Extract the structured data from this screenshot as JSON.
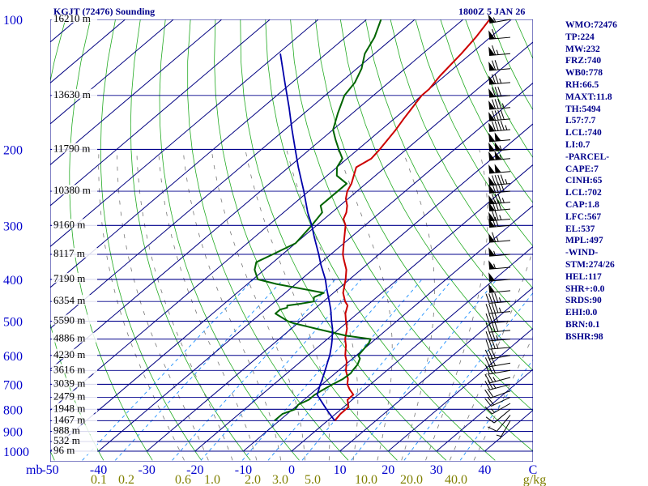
{
  "header": {
    "station": "KGJT (72476) Sounding",
    "timestamp": "1800Z  5 JAN 26"
  },
  "stats": [
    "WMO:72476",
    "TP:224",
    "MW:232",
    "FRZ:740",
    "WB0:778",
    "RH:66.5",
    "MAXT:11.8",
    "TH:5494",
    "L57:7.7",
    "LCL:740",
    "LI:0.7",
    "-PARCEL-",
    "CAPE:7",
    "CINH:65",
    "LCL:702",
    "CAP:1.8",
    "LFC:567",
    "EL:537",
    "MPL:497",
    "-WIND-",
    "STM:274/26",
    "HEL:117",
    "SHR+:0.0",
    "SRDS:90",
    "EHI:0.0",
    "BRN:0.1",
    "BSHR:98"
  ],
  "colors": {
    "isobar": "#00008b",
    "isotherm": "#000080",
    "dry_adiabat": "#22aa22",
    "mixing_ratio": "#1e90ff",
    "moist_adiabat": "#777777",
    "temperature": "#cc0000",
    "dewpoint": "#006400",
    "parcel": "#0000aa",
    "wind_barbs": "#000000",
    "axis_text": "#0000cd",
    "mixing_text": "#808000"
  },
  "chart_data": {
    "type": "line",
    "subtype": "skew-T log-P sounding",
    "title": "KGJT (72476) Sounding",
    "xlabel": "C",
    "ylabel": "mb",
    "xlim": [
      -50,
      50
    ],
    "ylim_pressure": [
      1000,
      100
    ],
    "pressure_ticks": [
      100,
      200,
      300,
      400,
      500,
      600,
      700,
      800,
      900,
      1000
    ],
    "pressure_tick_labels": [
      "100",
      "200",
      "300",
      "400",
      "500",
      "600",
      "700",
      "800",
      "900",
      "1000"
    ],
    "temperature_ticks": [
      -50,
      -40,
      -30,
      -20,
      -10,
      0,
      10,
      20,
      30,
      40,
      50
    ],
    "temperature_tick_labels": [
      "-50",
      "-40",
      "-30",
      "-20",
      "-10",
      "0",
      "10",
      "20",
      "30",
      "40",
      "C"
    ],
    "mixing_ratio_ticks": [
      0.1,
      0.2,
      0.6,
      1.0,
      2.0,
      3.0,
      5.0,
      10.0,
      20.0,
      40.0
    ],
    "mixing_ratio_labels": [
      "0.1",
      "0.2",
      "0.6",
      "1.0",
      "2.0",
      "3.0",
      "5.0",
      "10.0",
      "20.0",
      "40.0"
    ],
    "mixing_ratio_unit": "g/kg",
    "height_labels": [
      {
        "p": 100,
        "text": "16210 m"
      },
      {
        "p": 150,
        "text": "13630 m"
      },
      {
        "p": 200,
        "text": "11790 m"
      },
      {
        "p": 250,
        "text": "10380 m"
      },
      {
        "p": 300,
        "text": "9160 m"
      },
      {
        "p": 350,
        "text": "8117 m"
      },
      {
        "p": 400,
        "text": "7190 m"
      },
      {
        "p": 450,
        "text": "6354 m"
      },
      {
        "p": 500,
        "text": "5590 m"
      },
      {
        "p": 550,
        "text": "4886 m"
      },
      {
        "p": 600,
        "text": "4230 m"
      },
      {
        "p": 650,
        "text": "3616 m"
      },
      {
        "p": 700,
        "text": "3039 m"
      },
      {
        "p": 750,
        "text": "2479 m"
      },
      {
        "p": 800,
        "text": "1948 m"
      },
      {
        "p": 850,
        "text": "1467 m"
      },
      {
        "p": 900,
        "text": "988 m"
      },
      {
        "p": 950,
        "text": "532 m"
      },
      {
        "p": 1000,
        "text": "96 m"
      }
    ],
    "series": [
      {
        "key": "temperature",
        "points": [
          [
            850,
            1.5
          ],
          [
            820,
            1.0
          ],
          [
            790,
            1.0
          ],
          [
            760,
            -1.0
          ],
          [
            740,
            -1.0
          ],
          [
            720,
            -3.0
          ],
          [
            700,
            -4.8
          ],
          [
            680,
            -6.0
          ],
          [
            650,
            -8.5
          ],
          [
            620,
            -10.5
          ],
          [
            600,
            -12.3
          ],
          [
            570,
            -14.5
          ],
          [
            550,
            -16.3
          ],
          [
            520,
            -18.5
          ],
          [
            500,
            -20.5
          ],
          [
            480,
            -22.5
          ],
          [
            460,
            -24.0
          ],
          [
            450,
            -25.5
          ],
          [
            430,
            -28.0
          ],
          [
            400,
            -30.8
          ],
          [
            380,
            -33.0
          ],
          [
            360,
            -36.0
          ],
          [
            350,
            -37.5
          ],
          [
            330,
            -40.0
          ],
          [
            300,
            -44.0
          ],
          [
            290,
            -46.0
          ],
          [
            280,
            -47.0
          ],
          [
            270,
            -48.5
          ],
          [
            260,
            -50.5
          ],
          [
            250,
            -52.0
          ],
          [
            240,
            -53.0
          ],
          [
            220,
            -56.0
          ],
          [
            210,
            -55.0
          ],
          [
            200,
            -55.5
          ],
          [
            180,
            -57.0
          ],
          [
            170,
            -58.0
          ],
          [
            150,
            -60.0
          ],
          [
            145,
            -60.0
          ],
          [
            135,
            -61.0
          ],
          [
            120,
            -62.0
          ],
          [
            110,
            -63.0
          ],
          [
            100,
            -64.5
          ]
        ]
      },
      {
        "key": "dewpoint",
        "points": [
          [
            850,
            -11.0
          ],
          [
            820,
            -11.0
          ],
          [
            800,
            -9.5
          ],
          [
            780,
            -10.0
          ],
          [
            760,
            -9.0
          ],
          [
            740,
            -9.0
          ],
          [
            720,
            -8.5
          ],
          [
            700,
            -7.8
          ],
          [
            680,
            -7.0
          ],
          [
            660,
            -6.8
          ],
          [
            650,
            -7.1
          ],
          [
            630,
            -7.5
          ],
          [
            610,
            -8.5
          ],
          [
            600,
            -9.6
          ],
          [
            580,
            -10.0
          ],
          [
            560,
            -10.5
          ],
          [
            550,
            -11.0
          ],
          [
            540,
            -17.0
          ],
          [
            530,
            -21.0
          ],
          [
            520,
            -25.0
          ],
          [
            505,
            -31.0
          ],
          [
            500,
            -32.5
          ],
          [
            480,
            -37.0
          ],
          [
            470,
            -37.0
          ],
          [
            465,
            -36.0
          ],
          [
            460,
            -36.5
          ],
          [
            455,
            -34.0
          ],
          [
            450,
            -32.0
          ],
          [
            440,
            -33.0
          ],
          [
            430,
            -32.0
          ],
          [
            410,
            -44.0
          ],
          [
            400,
            -49.0
          ],
          [
            380,
            -52.0
          ],
          [
            365,
            -53.5
          ],
          [
            350,
            -52.0
          ],
          [
            330,
            -50.0
          ],
          [
            300,
            -51.0
          ],
          [
            280,
            -52.0
          ],
          [
            270,
            -54.0
          ],
          [
            260,
            -54.0
          ],
          [
            240,
            -54.0
          ],
          [
            230,
            -58.0
          ],
          [
            220,
            -60.0
          ],
          [
            210,
            -61.0
          ],
          [
            200,
            -64.0
          ],
          [
            190,
            -67.0
          ],
          [
            180,
            -70.0
          ],
          [
            165,
            -73.0
          ],
          [
            150,
            -76.0
          ],
          [
            140,
            -77.0
          ],
          [
            130,
            -79.0
          ],
          [
            120,
            -82.0
          ],
          [
            110,
            -84.0
          ],
          [
            100,
            -87.0
          ]
        ]
      },
      {
        "key": "parcel",
        "points": [
          [
            850,
            1.5
          ],
          [
            820,
            -1.2
          ],
          [
            800,
            -3.0
          ],
          [
            770,
            -5.7
          ],
          [
            740,
            -8.5
          ],
          [
            702,
            -10.3
          ],
          [
            680,
            -11.3
          ],
          [
            650,
            -12.8
          ],
          [
            620,
            -14.4
          ],
          [
            600,
            -15.5
          ],
          [
            570,
            -17.5
          ],
          [
            550,
            -19.0
          ],
          [
            520,
            -21.5
          ],
          [
            500,
            -23.5
          ],
          [
            470,
            -26.5
          ],
          [
            450,
            -28.8
          ],
          [
            420,
            -32.5
          ],
          [
            400,
            -35.0
          ],
          [
            370,
            -39.5
          ],
          [
            350,
            -42.5
          ],
          [
            320,
            -47.5
          ],
          [
            300,
            -51.0
          ],
          [
            280,
            -55.0
          ],
          [
            250,
            -61.0
          ],
          [
            220,
            -68.0
          ],
          [
            200,
            -73.0
          ],
          [
            180,
            -78.5
          ],
          [
            160,
            -84.5
          ],
          [
            140,
            -91.5
          ],
          [
            120,
            -99.5
          ]
        ]
      }
    ],
    "wind_barbs": [
      {
        "p": 850,
        "dir": 210,
        "spd": 5
      },
      {
        "p": 825,
        "dir": 220,
        "spd": 10
      },
      {
        "p": 800,
        "dir": 230,
        "spd": 10
      },
      {
        "p": 775,
        "dir": 240,
        "spd": 15
      },
      {
        "p": 750,
        "dir": 245,
        "spd": 20
      },
      {
        "p": 725,
        "dir": 250,
        "spd": 20
      },
      {
        "p": 700,
        "dir": 255,
        "spd": 25
      },
      {
        "p": 675,
        "dir": 255,
        "spd": 25
      },
      {
        "p": 650,
        "dir": 260,
        "spd": 30
      },
      {
        "p": 625,
        "dir": 260,
        "spd": 30
      },
      {
        "p": 600,
        "dir": 260,
        "spd": 30
      },
      {
        "p": 575,
        "dir": 265,
        "spd": 35
      },
      {
        "p": 550,
        "dir": 265,
        "spd": 35
      },
      {
        "p": 525,
        "dir": 265,
        "spd": 40
      },
      {
        "p": 500,
        "dir": 265,
        "spd": 40
      },
      {
        "p": 475,
        "dir": 265,
        "spd": 45
      },
      {
        "p": 450,
        "dir": 265,
        "spd": 45
      },
      {
        "p": 425,
        "dir": 265,
        "spd": 50
      },
      {
        "p": 400,
        "dir": 265,
        "spd": 50
      },
      {
        "p": 375,
        "dir": 265,
        "spd": 55
      },
      {
        "p": 350,
        "dir": 265,
        "spd": 55
      },
      {
        "p": 325,
        "dir": 265,
        "spd": 65
      },
      {
        "p": 300,
        "dir": 265,
        "spd": 70
      },
      {
        "p": 290,
        "dir": 265,
        "spd": 75
      },
      {
        "p": 275,
        "dir": 265,
        "spd": 80
      },
      {
        "p": 265,
        "dir": 265,
        "spd": 85
      },
      {
        "p": 250,
        "dir": 265,
        "spd": 90
      },
      {
        "p": 240,
        "dir": 265,
        "spd": 95
      },
      {
        "p": 225,
        "dir": 265,
        "spd": 100
      },
      {
        "p": 210,
        "dir": 265,
        "spd": 105
      },
      {
        "p": 200,
        "dir": 265,
        "spd": 105
      },
      {
        "p": 190,
        "dir": 265,
        "spd": 100
      },
      {
        "p": 180,
        "dir": 265,
        "spd": 95
      },
      {
        "p": 170,
        "dir": 265,
        "spd": 90
      },
      {
        "p": 160,
        "dir": 265,
        "spd": 85
      },
      {
        "p": 150,
        "dir": 265,
        "spd": 80
      },
      {
        "p": 140,
        "dir": 265,
        "spd": 75
      },
      {
        "p": 130,
        "dir": 265,
        "spd": 70
      },
      {
        "p": 120,
        "dir": 265,
        "spd": 65
      },
      {
        "p": 110,
        "dir": 265,
        "spd": 60
      },
      {
        "p": 100,
        "dir": 260,
        "spd": 55
      }
    ],
    "grid": true,
    "legend": "right"
  }
}
